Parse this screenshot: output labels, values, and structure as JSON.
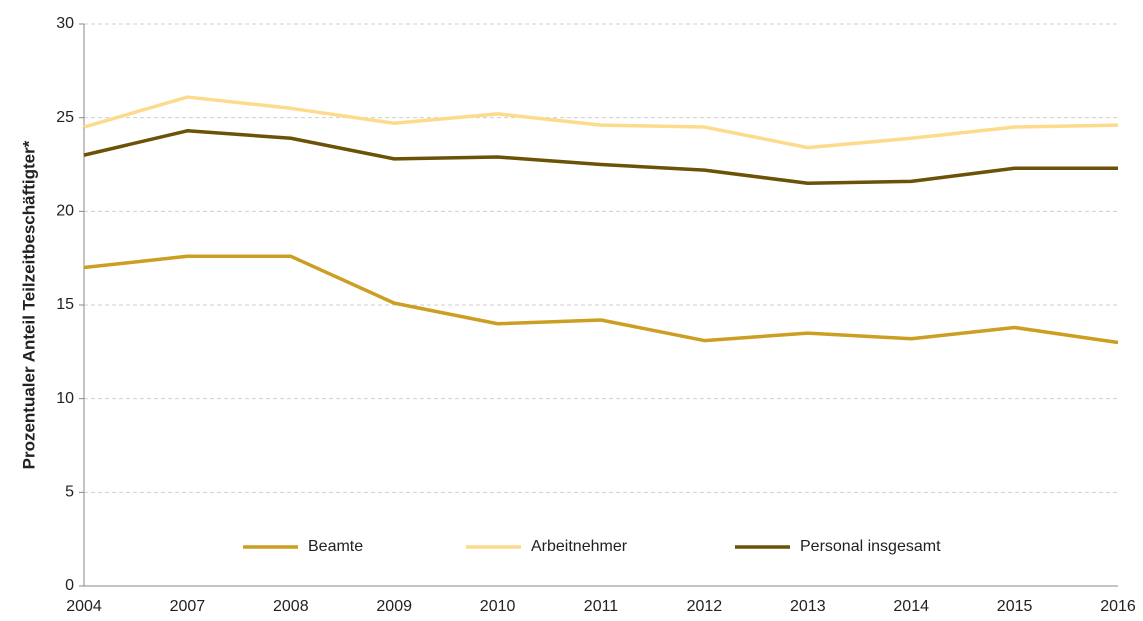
{
  "chart_data": {
    "type": "line",
    "y_label": "Prozentualer Anteil Teilzeitbeschäftigter*",
    "categories": [
      "2004",
      "2007",
      "2008",
      "2009",
      "2010",
      "2011",
      "2012",
      "2013",
      "2014",
      "2015",
      "2016"
    ],
    "series": [
      {
        "name": "Beamte",
        "color": "#cc9e22",
        "values": [
          17.0,
          17.6,
          17.6,
          15.1,
          14.0,
          14.2,
          13.1,
          13.5,
          13.2,
          13.8,
          13.0
        ]
      },
      {
        "name": "Arbeitnehmer",
        "color": "#fcdc8c",
        "values": [
          24.5,
          26.1,
          25.5,
          24.7,
          25.2,
          24.6,
          24.5,
          23.4,
          23.9,
          24.5,
          24.6
        ]
      },
      {
        "name": "Personal insgesamt",
        "color": "#6b5206",
        "values": [
          23.0,
          24.3,
          23.9,
          22.8,
          22.9,
          22.5,
          22.2,
          21.5,
          21.6,
          22.3,
          22.3
        ]
      }
    ],
    "ylim": [
      0,
      30
    ],
    "yticks": [
      0,
      5,
      10,
      15,
      20,
      25,
      30
    ],
    "grid": true,
    "legend": "bottom"
  }
}
